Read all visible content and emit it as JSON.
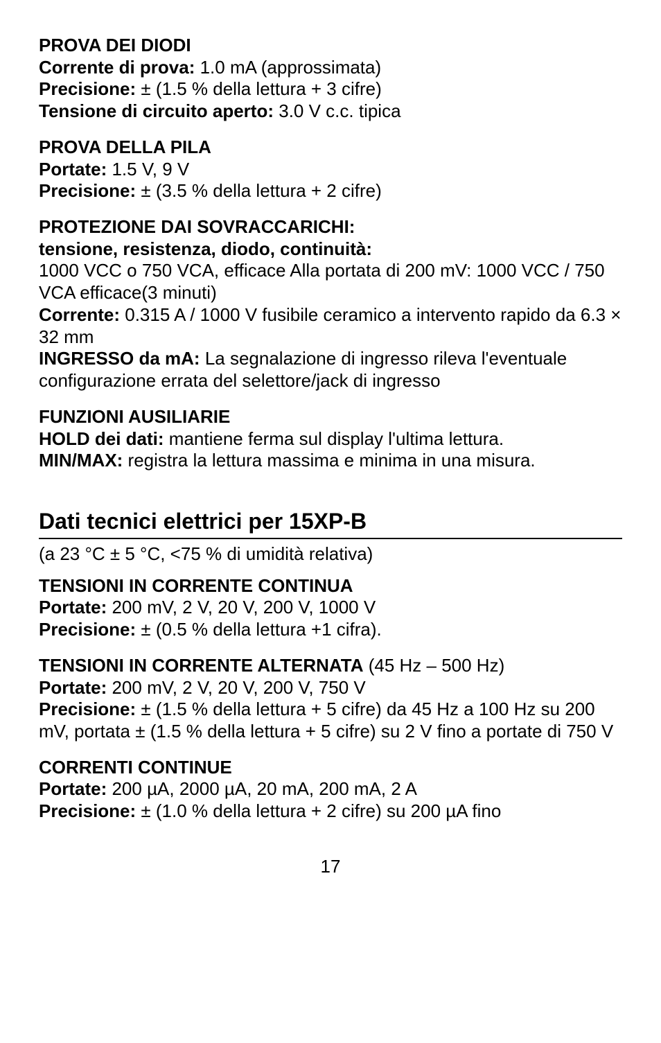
{
  "s1": {
    "title": "PROVA DEI DIODI",
    "l1b": "Corrente di prova:",
    "l1": " 1.0 mA (approssimata)",
    "l2b": "Precisione:",
    "l2": " ± (1.5 % della lettura + 3 cifre)",
    "l3b": "Tensione di circuito aperto:",
    "l3": " 3.0 V c.c. tipica"
  },
  "s2": {
    "title": "PROVA DELLA PILA",
    "l1b": "Portate:",
    "l1": " 1.5 V, 9 V",
    "l2b": "Precisione:",
    "l2": " ± (3.5 % della lettura + 2 cifre)"
  },
  "s3": {
    "title": "PROTEZIONE DAI SOVRACCARICHI:",
    "l1b": "tensione, resistenza, diodo, continuità:",
    "l1": "1000 VCC o 750 VCA, efficace Alla portata di 200 mV: 1000 VCC / 750 VCA efficace(3 minuti)",
    "l2b": "Corrente:",
    "l2": " 0.315 A / 1000 V fusibile ceramico a intervento rapido da 6.3 × 32 mm",
    "l3b": "INGRESSO da mA:",
    "l3": " La segnalazione di ingresso rileva l'eventuale configurazione errata del selettore/jack di ingresso"
  },
  "s4": {
    "title": "FUNZIONI AUSILIARIE",
    "l1b": "HOLD dei dati:",
    "l1": " mantiene ferma sul display l'ultima lettura.",
    "l2b": "MIN/MAX:",
    "l2": " registra la lettura massima e minima in una misura."
  },
  "h2": "Dati tecnici elettrici per 15XP-B",
  "h2_sub": "(a 23 °C ± 5 °C, <75 % di umidità relativa)",
  "s5": {
    "title": "TENSIONI IN CORRENTE CONTINUA",
    "l1b": "Portate:",
    "l1": " 200 mV, 2 V, 20 V, 200 V, 1000 V",
    "l2b": "Precisione:",
    "l2": " ± (0.5 % della lettura +1 cifra)."
  },
  "s6": {
    "title": "TENSIONI IN CORRENTE ALTERNATA",
    "title_suffix": " (45 Hz – 500 Hz)",
    "l1b": "Portate:",
    "l1": " 200 mV, 2 V, 20 V, 200 V, 750 V",
    "l2b": "Precisione:",
    "l2": " ± (1.5 % della lettura + 5 cifre) da 45 Hz a 100 Hz su 200 mV, portata ± (1.5 % della lettura + 5 cifre) su 2 V fino a portate di 750 V"
  },
  "s7": {
    "title": "CORRENTI CONTINUE",
    "l1b": "Portate:",
    "l1": " 200 µA, 2000 µA, 20 mA, 200 mA, 2 A",
    "l2b": "Precisione:",
    "l2": " ± (1.0 % della lettura + 2 cifre) su 200 µA fino"
  },
  "page": "17"
}
